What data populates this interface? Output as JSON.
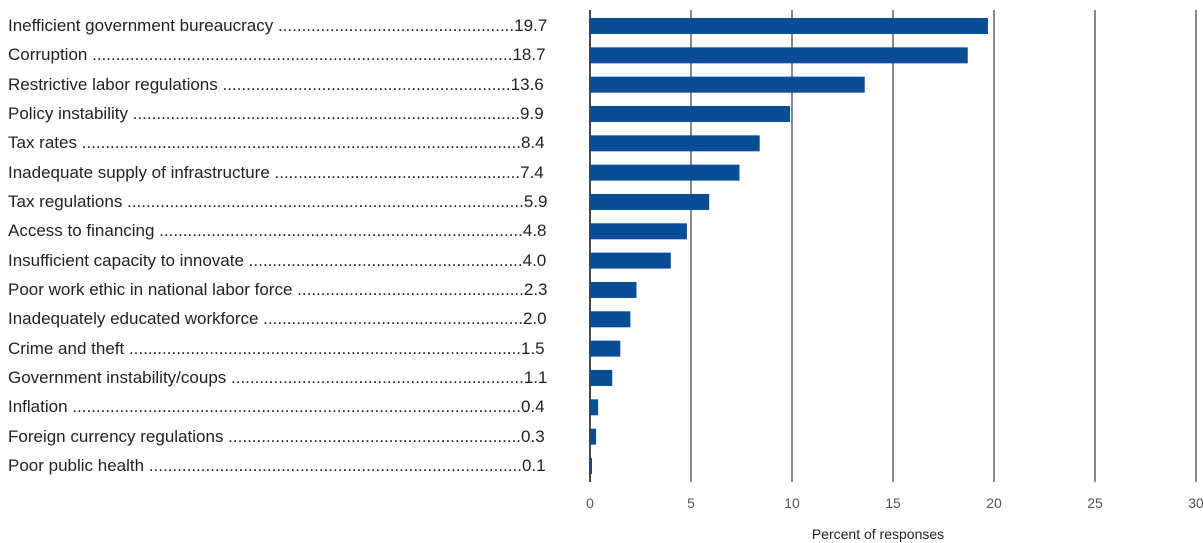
{
  "chart_data": {
    "type": "bar",
    "orientation": "horizontal",
    "categories": [
      "Inefficient government bureaucracy",
      "Corruption",
      "Restrictive labor regulations",
      "Policy instability",
      "Tax rates",
      "Inadequate supply of infrastructure",
      "Tax regulations",
      "Access to financing",
      "Insufficient capacity to innovate",
      "Poor work ethic in national labor force",
      "Inadequately educated workforce",
      "Crime and theft",
      "Government instability/coups",
      "Inflation",
      "Foreign currency regulations",
      "Poor public health"
    ],
    "values": [
      19.7,
      18.7,
      13.6,
      9.9,
      8.4,
      7.4,
      5.9,
      4.8,
      4.0,
      2.3,
      2.0,
      1.5,
      1.1,
      0.4,
      0.3,
      0.1
    ],
    "value_labels": [
      "19.7",
      "18.7",
      "13.6",
      "9.9",
      "8.4",
      "7.4",
      "5.9",
      "4.8",
      "4.0",
      "2.3",
      "2.0",
      "1.5",
      "1.1",
      "0.4",
      "0.3",
      "0.1"
    ],
    "xlabel": "Percent of responses",
    "xlim": [
      0,
      30
    ],
    "xticks": [
      0,
      5,
      10,
      15,
      20,
      25,
      30
    ],
    "vertical_gridlines": true,
    "bar_color": "#0a4d97",
    "gridline_color": "#3a3a3a",
    "text_color": "#231f20",
    "tick_label_color": "#555555"
  }
}
